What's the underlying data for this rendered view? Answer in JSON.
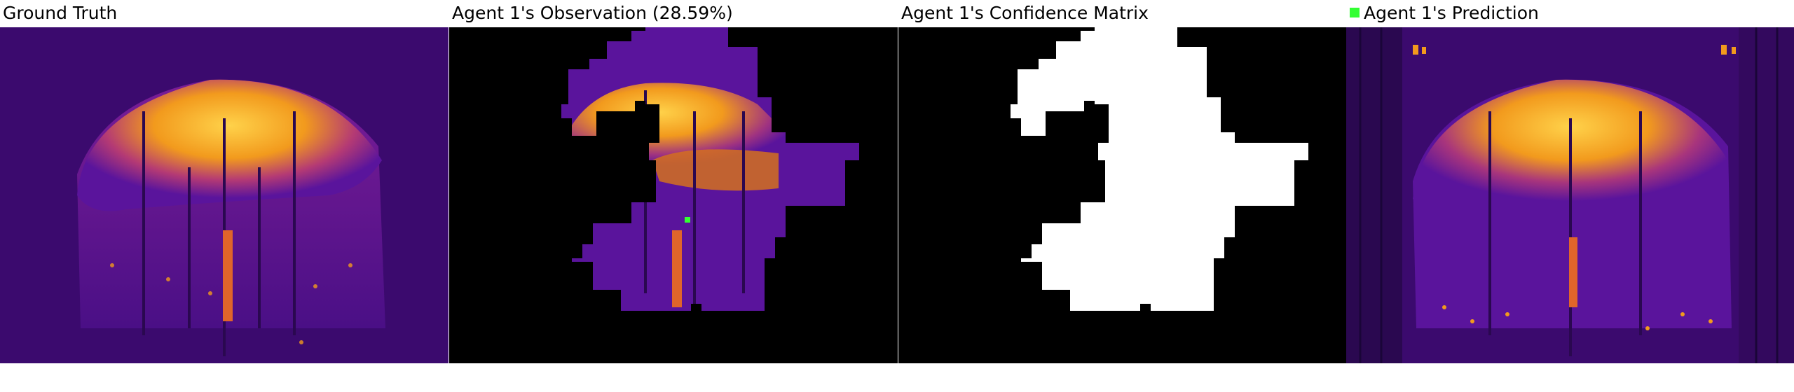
{
  "panels": [
    {
      "title": "Ground Truth"
    },
    {
      "title": "Agent 1's Observation (28.59%)"
    },
    {
      "title": "Agent 1's Confidence Matrix"
    },
    {
      "title": "Agent 1's Prediction"
    }
  ],
  "legend": {
    "marker_color": "#33ff33",
    "icon": "green-square-icon"
  },
  "colors": {
    "background_purple": "#3b0a6e",
    "mid_purple": "#5a149c",
    "magenta": "#9c2a8a",
    "orange": "#f08a1a",
    "yellow": "#ffc23a",
    "mask_black": "#000000",
    "mask_white": "#ffffff",
    "marker_green": "#33ff33"
  }
}
